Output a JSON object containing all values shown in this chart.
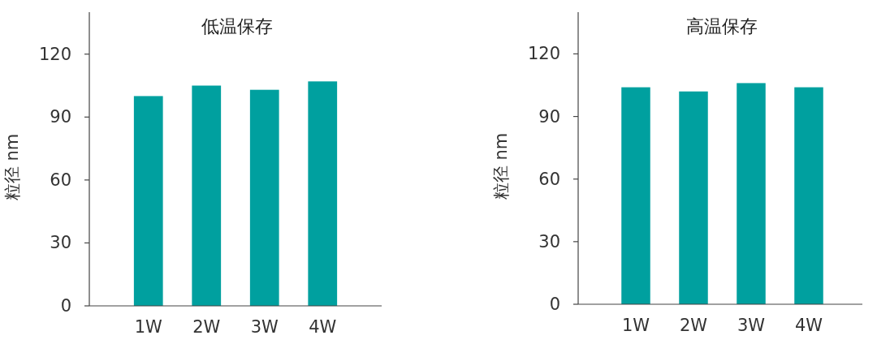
{
  "chart_data": [
    {
      "type": "bar",
      "title": "低温保存",
      "ylabel": "粒径 nm",
      "categories": [
        "1W",
        "2W",
        "3W",
        "4W"
      ],
      "values": [
        100,
        105,
        103,
        107
      ],
      "color": "#00a09f",
      "ylim": [
        0,
        140
      ],
      "yticks": [
        0,
        30,
        60,
        90,
        120
      ],
      "grid": false
    },
    {
      "type": "bar",
      "title": "高温保存",
      "ylabel": "粒径 nm",
      "categories": [
        "1W",
        "2W",
        "3W",
        "4W"
      ],
      "values": [
        104,
        102,
        106,
        104
      ],
      "color": "#00a09f",
      "ylim": [
        0,
        140
      ],
      "yticks": [
        0,
        30,
        60,
        90,
        120
      ],
      "grid": false
    }
  ]
}
